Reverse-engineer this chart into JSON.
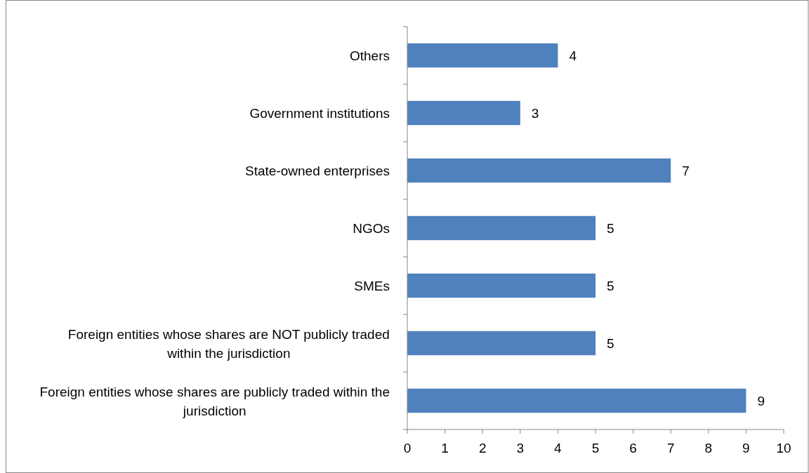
{
  "chart_data": {
    "type": "bar",
    "orientation": "horizontal",
    "categories": [
      "Others",
      "Government institutions",
      "State-owned enterprises",
      "NGOs",
      "SMEs",
      "Foreign entities whose shares are NOT publicly traded within the jurisdiction",
      "Foreign entities whose shares are publicly traded within the jurisdiction"
    ],
    "values": [
      4,
      3,
      7,
      5,
      5,
      5,
      9
    ],
    "color": "#4f81bd",
    "xlim": [
      0,
      10
    ],
    "xticks": [
      0,
      1,
      2,
      3,
      4,
      5,
      6,
      7,
      8,
      9,
      10
    ],
    "data_labels": true
  }
}
